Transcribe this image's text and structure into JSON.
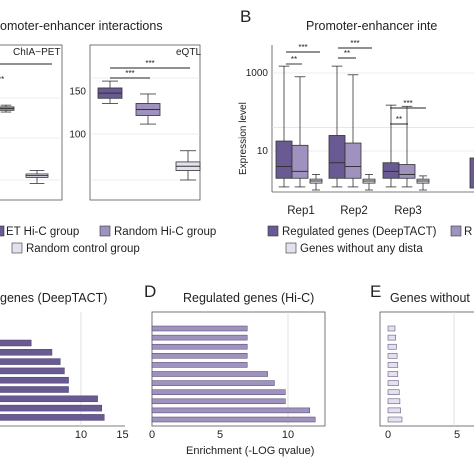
{
  "colors": {
    "dark": "#6a5a93",
    "medium": "#9f92bf",
    "light": "#e4e0ee",
    "whisker": "#333333",
    "grid": "#d9d9d9",
    "frame": "#555555"
  },
  "panels": {
    "A": {
      "title": "omoter-enhancer interactions",
      "sub_left": "ChIA−PET",
      "sub_right": "eQTL"
    },
    "B": {
      "letter": "B",
      "title": "Promoter-enhancer inte",
      "ylabel": "Expression level"
    },
    "D": {
      "letter": "D",
      "title": "Regulated genes (Hi-C)"
    },
    "E": {
      "letter": "E",
      "title": "Genes without"
    },
    "C_partial": {
      "title": "genes (DeepTACT)"
    }
  },
  "legend": {
    "a_item1": "ET Hi-C group",
    "a_item2": "Random Hi-C group",
    "a_item3": "Random control group",
    "b_item1": "Regulated genes (DeepTACT)",
    "b_item2": "R",
    "b_item3": "Genes without any dista"
  },
  "chart_data": [
    {
      "type": "box",
      "panel": "A-left",
      "subtitle": "ChIA−PET",
      "boxes": [
        {
          "group": "DeepTACT Hi-C group (cut off)",
          "visible": false
        },
        {
          "group": "Random Hi-C group",
          "median": 140
        },
        {
          "group": "Random control group",
          "median": 62
        }
      ],
      "annotations": [
        "**"
      ]
    },
    {
      "type": "box",
      "panel": "A-right",
      "subtitle": "eQTL",
      "boxes": [
        {
          "group": "DeepTACT Hi-C group",
          "min": 136,
          "q1": 142,
          "median": 148,
          "q3": 154,
          "max": 162
        },
        {
          "group": "Random Hi-C group",
          "min": 112,
          "q1": 122,
          "median": 129,
          "q3": 136,
          "max": 147
        },
        {
          "group": "Random control group",
          "min": 47,
          "q1": 58,
          "median": 63,
          "q3": 68,
          "max": 81
        }
      ],
      "annotations": [
        "***",
        "***"
      ]
    },
    {
      "type": "box",
      "panel": "B",
      "ylabel": "Expression level",
      "yscale": "log",
      "yticks": [
        "1000",
        "10"
      ],
      "categories": [
        "Rep1",
        "Rep2",
        "Rep3"
      ],
      "series": [
        {
          "name": "Regulated genes (DeepTACT)",
          "boxes": [
            {
              "rep": "Rep1",
              "min": 1.2,
              "q1": 2,
              "median": 4,
              "q3": 18,
              "max": 1500
            },
            {
              "rep": "Rep2",
              "min": 1.2,
              "q1": 2,
              "median": 5,
              "q3": 25,
              "max": 1500
            },
            {
              "rep": "Rep3",
              "min": 1.2,
              "q1": 2,
              "median": 3,
              "q3": 5,
              "max": 150
            }
          ]
        },
        {
          "name": "Random Hi-C group",
          "boxes": [
            {
              "rep": "Rep1",
              "min": 1.2,
              "q1": 2,
              "median": 3,
              "q3": 14,
              "max": 800
            },
            {
              "rep": "Rep2",
              "min": 1.2,
              "q1": 2,
              "median": 4,
              "q3": 16,
              "max": 900
            },
            {
              "rep": "Rep3",
              "min": 1.2,
              "q1": 2,
              "median": 2.5,
              "q3": 4.5,
              "max": 140
            }
          ]
        },
        {
          "name": "Genes without any distal interaction",
          "boxes": [
            {
              "rep": "Rep1",
              "min": 1,
              "q1": 1.5,
              "median": 1.7,
              "q3": 1.9,
              "max": 2.5
            },
            {
              "rep": "Rep2",
              "min": 1,
              "q1": 1.5,
              "median": 1.7,
              "q3": 1.9,
              "max": 2.5
            },
            {
              "rep": "Rep3",
              "min": 1,
              "q1": 1.5,
              "median": 1.7,
              "q3": 1.9,
              "max": 2.3
            }
          ]
        }
      ],
      "annotations": [
        "***",
        "**",
        "***",
        "**",
        "***",
        "**"
      ]
    },
    {
      "type": "bar",
      "orientation": "horizontal",
      "panel": "C",
      "title": "genes (DeepTACT)",
      "xlim": [
        0,
        15
      ],
      "xticks": [
        "10",
        "15"
      ],
      "reference_line": 10,
      "values": [
        4,
        6.5,
        7.5,
        8,
        8.5,
        8.5,
        12,
        12.5,
        12.8
      ]
    },
    {
      "type": "bar",
      "orientation": "horizontal",
      "panel": "D",
      "title": "Regulated genes (Hi-C)",
      "xlabel": "Enrichment (-LOG qvalue)",
      "xlim": [
        0,
        12.5
      ],
      "xticks": [
        "0",
        "5",
        "10"
      ],
      "reference_line": 10,
      "values": [
        7,
        7,
        7,
        7,
        7,
        8.5,
        9,
        9.8,
        9.8,
        11.6,
        12
      ]
    },
    {
      "type": "bar",
      "orientation": "horizontal",
      "panel": "E",
      "title": "Genes without",
      "xticks": [
        "0",
        "5"
      ],
      "values": [
        1,
        1.1,
        1.2,
        1.3,
        1.4,
        1.4,
        1.5,
        1.6,
        1.7,
        1.8,
        2
      ]
    }
  ]
}
